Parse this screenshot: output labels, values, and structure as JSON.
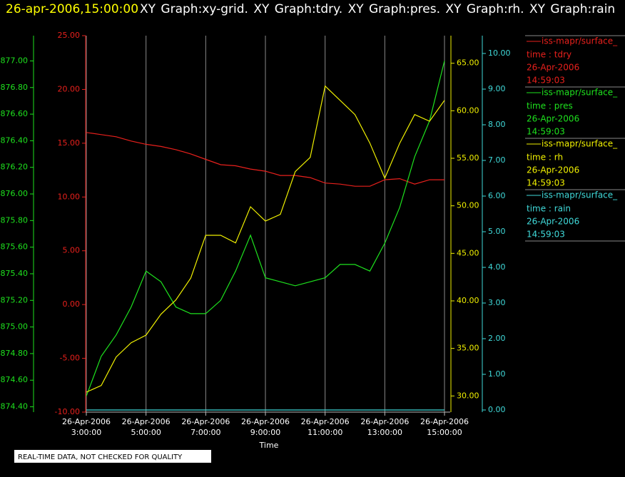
{
  "chart_data": {
    "type": "line",
    "timestamp": "26-apr-2006,15:00:00",
    "title": "XY Graph:xy-grid.  XY Graph:tdry.  XY Graph:pres.  XY Graph:rh.  XY Graph:rain",
    "xlabel": "Time",
    "note": "REAL-TIME DATA, NOT CHECKED FOR QUALITY",
    "grid": true,
    "x": [
      "2006-04-26T03:00",
      "2006-04-26T03:30",
      "2006-04-26T04:00",
      "2006-04-26T04:30",
      "2006-04-26T05:00",
      "2006-04-26T05:30",
      "2006-04-26T06:00",
      "2006-04-26T06:30",
      "2006-04-26T07:00",
      "2006-04-26T07:30",
      "2006-04-26T08:00",
      "2006-04-26T08:30",
      "2006-04-26T09:00",
      "2006-04-26T09:30",
      "2006-04-26T10:00",
      "2006-04-26T10:30",
      "2006-04-26T11:00",
      "2006-04-26T11:30",
      "2006-04-26T12:00",
      "2006-04-26T12:30",
      "2006-04-26T13:00",
      "2006-04-26T13:30",
      "2006-04-26T14:00",
      "2006-04-26T14:30",
      "2006-04-26T15:00"
    ],
    "xlim": [
      "2006-04-26T03:00",
      "2006-04-26T15:00"
    ],
    "xticks": [
      {
        "value": "2006-04-26T03:00",
        "label": [
          "26-Apr-2006",
          "3:00:00"
        ]
      },
      {
        "value": "2006-04-26T05:00",
        "label": [
          "26-Apr-2006",
          "5:00:00"
        ]
      },
      {
        "value": "2006-04-26T07:00",
        "label": [
          "26-Apr-2006",
          "7:00:00"
        ]
      },
      {
        "value": "2006-04-26T09:00",
        "label": [
          "26-Apr-2006",
          "9:00:00"
        ]
      },
      {
        "value": "2006-04-26T11:00",
        "label": [
          "26-Apr-2006",
          "11:00:00"
        ]
      },
      {
        "value": "2006-04-26T13:00",
        "label": [
          "26-Apr-2006",
          "13:00:00"
        ]
      },
      {
        "value": "2006-04-26T15:00",
        "label": [
          "26-Apr-2006",
          "15:00:00"
        ]
      }
    ],
    "ylim": [
      -10,
      25
    ],
    "yticks": [
      {
        "value": -10,
        "label": "-10.00"
      },
      {
        "value": -5,
        "label": "-5.00"
      },
      {
        "value": 0,
        "label": "0.00"
      },
      {
        "value": 5,
        "label": "5.00"
      },
      {
        "value": 10,
        "label": "10.00"
      },
      {
        "value": 15,
        "label": "15.00"
      },
      {
        "value": 20,
        "label": "20.00"
      },
      {
        "value": 25,
        "label": "25.00"
      }
    ],
    "y2lim": [
      874.36,
      877.19
    ],
    "y2ticks": [
      {
        "value": 874.4,
        "label": "874.40"
      },
      {
        "value": 874.6,
        "label": "874.60"
      },
      {
        "value": 874.8,
        "label": "874.80"
      },
      {
        "value": 875.0,
        "label": "875.00"
      },
      {
        "value": 875.2,
        "label": "875.20"
      },
      {
        "value": 875.4,
        "label": "875.40"
      },
      {
        "value": 875.6,
        "label": "875.60"
      },
      {
        "value": 875.8,
        "label": "875.80"
      },
      {
        "value": 876.0,
        "label": "876.00"
      },
      {
        "value": 876.2,
        "label": "876.20"
      },
      {
        "value": 876.4,
        "label": "876.40"
      },
      {
        "value": 876.6,
        "label": "876.60"
      },
      {
        "value": 876.8,
        "label": "876.80"
      },
      {
        "value": 877.0,
        "label": "877.00"
      }
    ],
    "y3lim": [
      28.3,
      67.9
    ],
    "y3ticks": [
      {
        "value": 30,
        "label": "30.00"
      },
      {
        "value": 35,
        "label": "35.00"
      },
      {
        "value": 40,
        "label": "40.00"
      },
      {
        "value": 45,
        "label": "45.00"
      },
      {
        "value": 50,
        "label": "50.00"
      },
      {
        "value": 55,
        "label": "55.00"
      },
      {
        "value": 60,
        "label": "60.00"
      },
      {
        "value": 65,
        "label": "65.00"
      }
    ],
    "y4lim": [
      -0.06,
      10.5
    ],
    "y4ticks": [
      {
        "value": 0,
        "label": "0.00"
      },
      {
        "value": 1,
        "label": "1.00"
      },
      {
        "value": 2,
        "label": "2.00"
      },
      {
        "value": 3,
        "label": "3.00"
      },
      {
        "value": 4,
        "label": "4.00"
      },
      {
        "value": 5,
        "label": "5.00"
      },
      {
        "value": 6,
        "label": "6.00"
      },
      {
        "value": 7,
        "label": "7.00"
      },
      {
        "value": 8,
        "label": "8.00"
      },
      {
        "value": 9,
        "label": "9.00"
      },
      {
        "value": 10,
        "label": "10.00"
      }
    ],
    "series": [
      {
        "name": "iss-mapr/surface_",
        "label": "time : tdry",
        "date": "26-Apr-2006",
        "time": "14:59:03",
        "color": "#e8201c",
        "axis": "y",
        "values": [
          16.0,
          15.8,
          15.6,
          15.2,
          14.9,
          14.7,
          14.4,
          14.0,
          13.5,
          13.0,
          12.9,
          12.6,
          12.4,
          12.0,
          12.0,
          11.8,
          11.3,
          11.2,
          11.0,
          11.0,
          11.6,
          11.7,
          11.2,
          11.6,
          11.6
        ]
      },
      {
        "name": "iss-mapr/surface_",
        "label": "time : pres",
        "date": "26-Apr-2006",
        "time": "14:59:03",
        "color": "#1ee21e",
        "axis": "y2",
        "values": [
          874.48,
          874.78,
          874.94,
          875.15,
          875.42,
          875.34,
          875.15,
          875.1,
          875.1,
          875.2,
          875.42,
          875.69,
          875.37,
          875.34,
          875.31,
          875.34,
          875.37,
          875.47,
          875.47,
          875.42,
          875.63,
          875.9,
          876.28,
          876.55,
          877.0
        ]
      },
      {
        "name": "iss-mapr/surface_",
        "label": "time : rh",
        "date": "26-Apr-2006",
        "time": "14:59:03",
        "color": "#f0f000",
        "axis": "y3",
        "values": [
          30.4,
          31.1,
          34.1,
          35.6,
          36.4,
          38.6,
          40.1,
          42.4,
          46.9,
          46.9,
          46.1,
          49.9,
          48.4,
          49.1,
          53.6,
          55.1,
          62.6,
          61.1,
          59.6,
          56.6,
          52.9,
          56.6,
          59.6,
          58.9,
          61.1
        ]
      },
      {
        "name": "iss-mapr/surface_",
        "label": "time : rain",
        "date": "26-Apr-2006",
        "time": "14:59:03",
        "color": "#40dada",
        "axis": "y4",
        "values": [
          0,
          0,
          0,
          0,
          0,
          0,
          0,
          0,
          0,
          0,
          0,
          0,
          0,
          0,
          0,
          0,
          0,
          0,
          0,
          0,
          0,
          0,
          0,
          0,
          0
        ]
      }
    ]
  }
}
